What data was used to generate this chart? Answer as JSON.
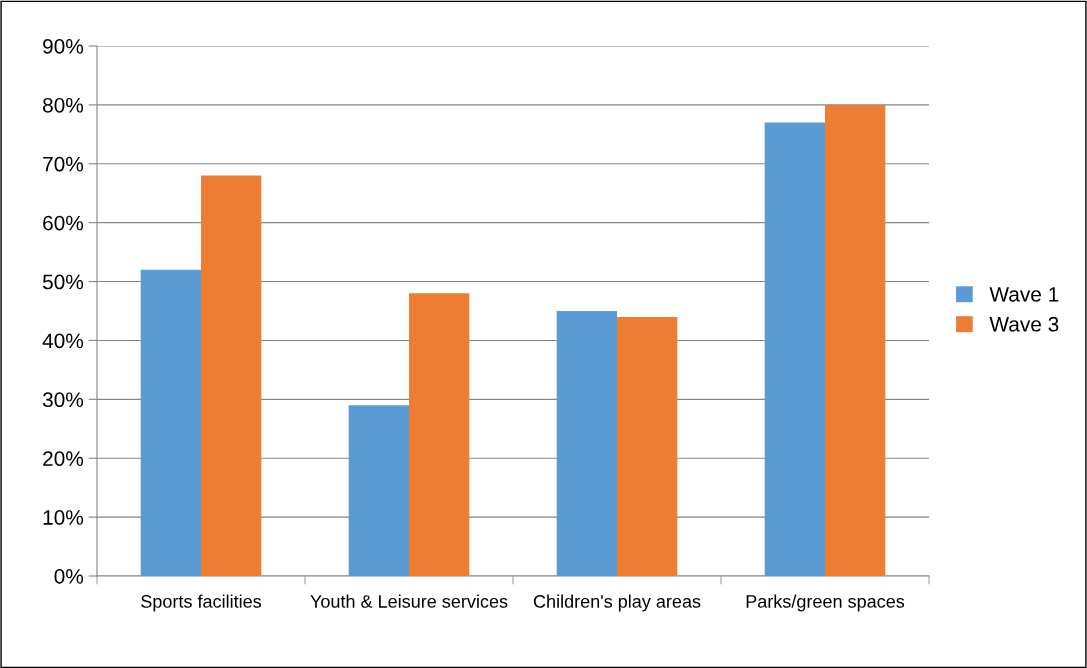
{
  "chart_data": {
    "type": "bar",
    "categories": [
      "Sports facilities",
      "Youth & Leisure services",
      "Children's play areas",
      "Parks/green spaces"
    ],
    "series": [
      {
        "name": "Wave 1",
        "color": "#5b9bd5",
        "values": [
          52,
          29,
          45,
          77
        ]
      },
      {
        "name": "Wave 3",
        "color": "#ed7d31",
        "values": [
          68,
          48,
          44,
          80
        ]
      }
    ],
    "ylim": [
      0,
      90
    ],
    "yticks": [
      {
        "value": 0,
        "label": "0%"
      },
      {
        "value": 10,
        "label": "10%"
      },
      {
        "value": 20,
        "label": "20%"
      },
      {
        "value": 30,
        "label": "30%"
      },
      {
        "value": 40,
        "label": "40%"
      },
      {
        "value": 50,
        "label": "50%"
      },
      {
        "value": 60,
        "label": "60%"
      },
      {
        "value": 70,
        "label": "70%"
      },
      {
        "value": 80,
        "label": "80%"
      },
      {
        "value": 90,
        "label": "90%"
      }
    ],
    "grid": "y",
    "legend": "right"
  }
}
